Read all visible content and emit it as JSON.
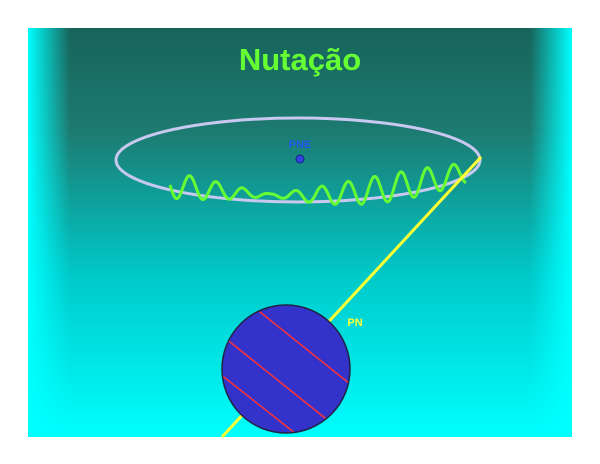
{
  "title": "Nutação",
  "labels": {
    "pne": "PNE",
    "pn": "PN"
  }
}
